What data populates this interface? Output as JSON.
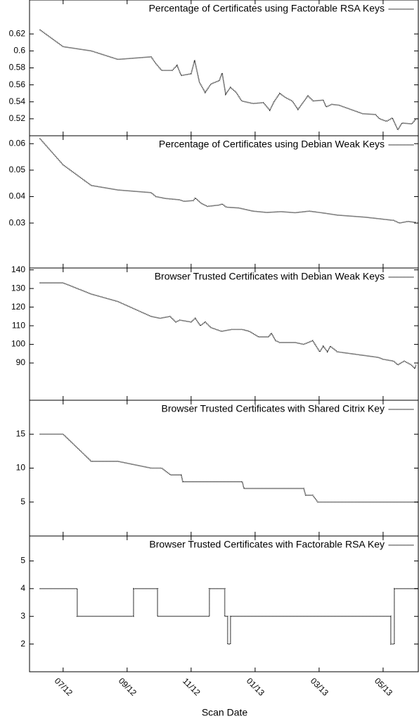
{
  "chart_data": [
    {
      "type": "line",
      "legend": "top right",
      "xlim": [
        5.95,
        18.1
      ],
      "ylim": [
        0.5,
        0.66
      ],
      "yticks": [
        0.52,
        0.54,
        0.56,
        0.58,
        0.6,
        0.62
      ],
      "x": [
        6.27,
        7,
        7.88,
        8.71,
        9.75,
        9.9,
        10.08,
        10.41,
        10.56,
        10.69,
        11.0,
        11.11,
        11.26,
        11.44,
        11.62,
        11.88,
        11.97,
        12.08,
        12.23,
        12.41,
        12.58,
        12.93,
        13.26,
        13.46,
        13.59,
        13.77,
        13.95,
        14.16,
        14.34,
        14.65,
        14.82,
        15.13,
        15.22,
        15.4,
        15.62,
        16.36,
        16.76,
        16.89,
        17.11,
        17.29,
        17.46,
        17.59,
        17.9,
        18.03
      ],
      "series": [
        {
          "name": "Percentage of Certificates using Factorable RSA Keys",
          "color": "#000000",
          "values": [
            0.625,
            0.605,
            0.6,
            0.59,
            0.593,
            0.585,
            0.577,
            0.577,
            0.583,
            0.571,
            0.573,
            0.589,
            0.563,
            0.551,
            0.561,
            0.565,
            0.574,
            0.549,
            0.557,
            0.551,
            0.541,
            0.538,
            0.539,
            0.53,
            0.54,
            0.55,
            0.545,
            0.541,
            0.531,
            0.547,
            0.541,
            0.542,
            0.534,
            0.537,
            0.536,
            0.526,
            0.525,
            0.52,
            0.517,
            0.521,
            0.507,
            0.515,
            0.514,
            0.52
          ]
        }
      ]
    },
    {
      "type": "line",
      "legend": "top right",
      "xlim": [
        5.95,
        18.1
      ],
      "ylim": [
        0.013,
        0.063
      ],
      "yticks": [
        0.03,
        0.04,
        0.05,
        0.06
      ],
      "x": [
        6.27,
        7,
        7.88,
        8.71,
        9.75,
        9.9,
        10.19,
        10.63,
        10.78,
        11.07,
        11.13,
        11.31,
        11.51,
        11.88,
        11.97,
        12.1,
        12.49,
        12.93,
        13.37,
        13.81,
        14.25,
        14.69,
        15.13,
        15.57,
        16.45,
        17.11,
        17.33,
        17.51,
        17.77,
        18.03
      ],
      "series": [
        {
          "name": "Percentage of Certificates using Debian Weak Keys",
          "color": "#000000",
          "values": [
            0.062,
            0.052,
            0.0442,
            0.0425,
            0.0415,
            0.04,
            0.0393,
            0.0388,
            0.0382,
            0.0385,
            0.0395,
            0.0375,
            0.0363,
            0.0368,
            0.0372,
            0.036,
            0.0357,
            0.0345,
            0.034,
            0.0343,
            0.0339,
            0.0345,
            0.0338,
            0.033,
            0.0322,
            0.0313,
            0.031,
            0.03,
            0.0306,
            0.0302
          ]
        }
      ]
    },
    {
      "type": "line",
      "legend": "top right",
      "xlim": [
        5.95,
        18.1
      ],
      "ylim": [
        70,
        141
      ],
      "yticks": [
        90,
        100,
        110,
        120,
        130,
        140
      ],
      "x": [
        6.27,
        7,
        7.88,
        8.71,
        9.75,
        10.03,
        10.34,
        10.52,
        10.65,
        11,
        11.13,
        11.29,
        11.44,
        11.62,
        11.95,
        12.27,
        12.6,
        12.82,
        13.11,
        13.42,
        13.51,
        13.64,
        13.77,
        14.25,
        14.52,
        14.8,
        15.02,
        15.13,
        15.26,
        15.35,
        15.57,
        16.85,
        17,
        17.33,
        17.46,
        17.66,
        17.88,
        17.99,
        18.03
      ],
      "series": [
        {
          "name": "Browser Trusted Certificates with Debian Weak Keys",
          "color": "#000000",
          "values": [
            133,
            133,
            127,
            123,
            115,
            114,
            115,
            112,
            113,
            112,
            114,
            110,
            112,
            109,
            107,
            108,
            108,
            107,
            104,
            104,
            106,
            102,
            101,
            101,
            100,
            102,
            96,
            99,
            96,
            99,
            96,
            93,
            92,
            91,
            89,
            91,
            89,
            87,
            89
          ]
        }
      ]
    },
    {
      "type": "line",
      "legend": "top right",
      "xlim": [
        5.95,
        18.1
      ],
      "ylim": [
        0,
        20
      ],
      "yticks": [
        5,
        10,
        15
      ],
      "x": [
        6.27,
        7,
        7.88,
        8.71,
        9.75,
        10.08,
        10.36,
        10.69,
        10.74,
        12.6,
        12.65,
        14.52,
        14.58,
        14.8,
        14.96,
        18.1
      ],
      "series": [
        {
          "name": "Browser Trusted Certificates with Shared Citrix Key",
          "color": "#000000",
          "values": [
            15,
            15,
            11,
            11,
            10,
            10,
            9,
            9,
            8,
            8,
            7,
            7,
            6,
            6,
            5,
            5
          ]
        }
      ]
    },
    {
      "type": "line",
      "legend": "top right",
      "xlim": [
        5.95,
        18.1
      ],
      "ylim": [
        1,
        5.9
      ],
      "yticks": [
        2,
        3,
        4,
        5
      ],
      "xticks": [
        {
          "value": 7,
          "label": "07/12"
        },
        {
          "value": 9,
          "label": "09/12"
        },
        {
          "value": 11,
          "label": "11/12"
        },
        {
          "value": 13,
          "label": "01/13"
        },
        {
          "value": 15,
          "label": "03/13"
        },
        {
          "value": 17,
          "label": "05/13"
        }
      ],
      "xlabel": "Scan Date",
      "x": [
        6.27,
        7.44,
        7.44,
        9.2,
        9.2,
        9.95,
        9.95,
        11.57,
        11.57,
        12.05,
        12.05,
        12.14,
        12.14,
        12.23,
        12.23,
        17.24,
        17.24,
        17.35,
        17.35,
        18.1
      ],
      "series": [
        {
          "name": "Browser Trusted Certificates with Factorable RSA Key",
          "color": "#000000",
          "values": [
            4,
            4,
            3,
            3,
            4,
            4,
            3,
            3,
            4,
            4,
            3,
            3,
            2,
            2,
            3,
            3,
            2,
            2,
            4,
            4
          ]
        }
      ]
    }
  ]
}
